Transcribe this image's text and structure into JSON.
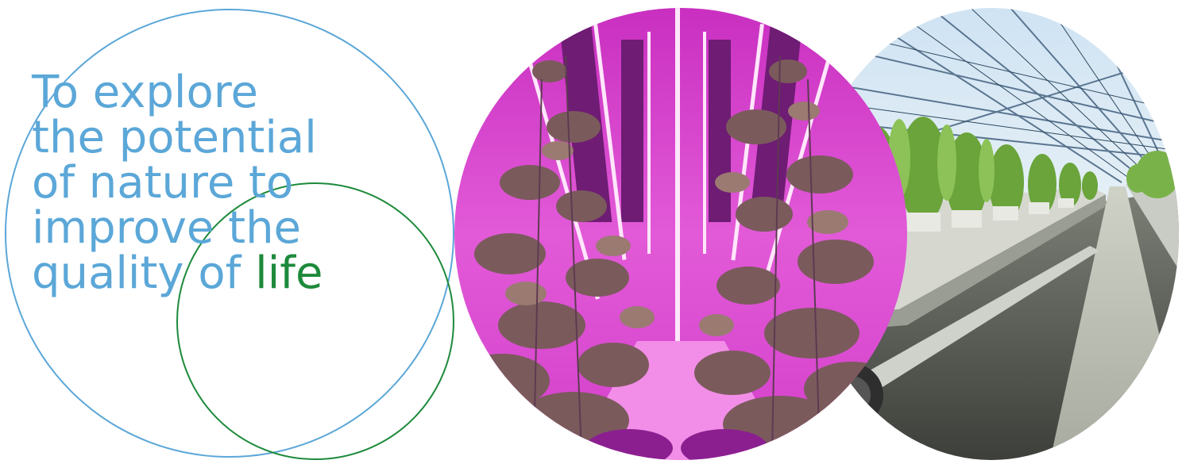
{
  "mission": {
    "line1": "To explore",
    "line2": "the potential",
    "line3": "of nature to",
    "line4": "improve the",
    "line5_lead": "quality of ",
    "line5_accent": "life"
  },
  "colors": {
    "text_blue": "#5ba7d8",
    "accent_green": "#1d8a3b",
    "led_magenta": "#e040d0"
  },
  "images": {
    "left_photo": "led-vertical-farm-cucumber-plants",
    "right_photo": "glass-greenhouse-potted-maize-plants"
  }
}
